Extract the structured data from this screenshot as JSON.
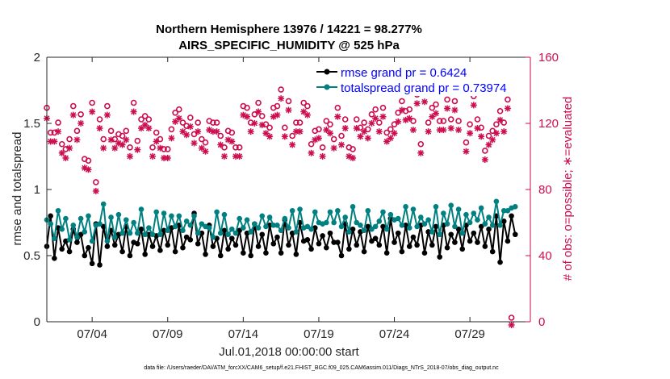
{
  "title_line1": "Northern Hemisphere 13976 / 14221 = 98.277%",
  "title_line2": "AIRS_SPECIFIC_HUMIDITY @ 525 hPa",
  "xlabel": "Jul.01,2018 00:00:00 start",
  "ylabel_left": "rmse and totalspread",
  "ylabel_right": "# of obs: o=possible; ∗=evaluated",
  "footer": "data file: /Users/raeder/DAI/ATM_forcXX/CAM6_setup/f.e21.FHIST_BGC.f09_025.CAM6assim.011/Diags_NTrS_2018-07/obs_diag_output.nc",
  "colors": {
    "rmse": "#000000",
    "spread": "#008080",
    "obs": "#cc0d4f",
    "axis": "#262626",
    "legend_text": "#0000ff"
  },
  "chart_data": {
    "type": "line",
    "x": [
      0.0,
      0.25,
      0.5,
      0.75,
      1.0,
      1.25,
      1.5,
      1.75,
      2.0,
      2.25,
      2.5,
      2.75,
      3.0,
      3.25,
      3.5,
      3.75,
      4.0,
      4.25,
      4.5,
      4.75,
      5.0,
      5.25,
      5.5,
      5.75,
      6.0,
      6.25,
      6.5,
      6.75,
      7.0,
      7.25,
      7.5,
      7.75,
      8.0,
      8.25,
      8.5,
      8.75,
      9.0,
      9.25,
      9.5,
      9.75,
      10.0,
      10.25,
      10.5,
      10.75,
      11.0,
      11.25,
      11.5,
      11.75,
      12.0,
      12.25,
      12.5,
      12.75,
      13.0,
      13.25,
      13.5,
      13.75,
      14.0,
      14.25,
      14.5,
      14.75,
      15.0,
      15.25,
      15.5,
      15.75,
      16.0,
      16.25,
      16.5,
      16.75,
      17.0,
      17.25,
      17.5,
      17.75,
      18.0,
      18.25,
      18.5,
      18.75,
      19.0,
      19.25,
      19.5,
      19.75,
      20.0,
      20.25,
      20.5,
      20.75,
      21.0,
      21.25,
      21.5,
      21.75,
      22.0,
      22.25,
      22.5,
      22.75,
      23.0,
      23.25,
      23.5,
      23.75,
      24.0,
      24.25,
      24.5,
      24.75,
      25.0,
      25.25,
      25.5,
      25.75,
      26.0,
      26.25,
      26.5,
      26.75,
      27.0,
      27.25,
      27.5,
      27.75,
      28.0,
      28.25,
      28.5,
      28.75,
      29.0,
      29.25,
      29.5,
      29.75,
      30.0,
      30.25,
      30.5,
      30.75,
      31.0
    ],
    "xlim": [
      0,
      32
    ],
    "xticks": [
      {
        "value": 3,
        "label": "07/04"
      },
      {
        "value": 8,
        "label": "07/09"
      },
      {
        "value": 13,
        "label": "07/14"
      },
      {
        "value": 18,
        "label": "07/19"
      },
      {
        "value": 23,
        "label": "07/24"
      },
      {
        "value": 28,
        "label": "07/29"
      }
    ],
    "ylim_left": [
      0,
      2
    ],
    "yticks_left": [
      0,
      0.5,
      1,
      1.5,
      2
    ],
    "ylim_right": [
      0,
      160
    ],
    "yticks_right": [
      0,
      40,
      80,
      120,
      160
    ],
    "series": [
      {
        "name": "rmse",
        "legend": "rmse grand pr = 0.6424",
        "axis": "left",
        "marker": "dot",
        "color": "#000000",
        "values": [
          0.57,
          0.8,
          0.48,
          0.71,
          0.55,
          0.61,
          0.53,
          0.7,
          0.6,
          0.66,
          0.5,
          0.56,
          0.44,
          0.74,
          0.43,
          0.72,
          0.57,
          0.69,
          0.58,
          0.66,
          0.53,
          0.72,
          0.5,
          0.6,
          0.59,
          0.7,
          0.51,
          0.66,
          0.57,
          0.65,
          0.54,
          0.69,
          0.58,
          0.71,
          0.53,
          0.73,
          0.56,
          0.64,
          0.62,
          0.82,
          0.59,
          0.67,
          0.51,
          0.73,
          0.57,
          0.63,
          0.5,
          0.69,
          0.55,
          0.63,
          0.58,
          0.69,
          0.52,
          0.67,
          0.5,
          0.74,
          0.57,
          0.66,
          0.52,
          0.73,
          0.59,
          0.64,
          0.52,
          0.77,
          0.58,
          0.67,
          0.51,
          0.75,
          0.61,
          0.62,
          0.55,
          0.71,
          0.59,
          0.65,
          0.56,
          0.67,
          0.6,
          0.6,
          0.5,
          0.74,
          0.55,
          0.7,
          0.58,
          0.68,
          0.53,
          0.72,
          0.61,
          0.63,
          0.58,
          0.72,
          0.52,
          0.78,
          0.6,
          0.67,
          0.53,
          0.73,
          0.57,
          0.64,
          0.58,
          0.73,
          0.52,
          0.68,
          0.58,
          0.72,
          0.49,
          0.73,
          0.56,
          0.66,
          0.6,
          0.7,
          0.55,
          0.73,
          0.61,
          0.67,
          0.6,
          0.72,
          0.57,
          0.7,
          0.53,
          0.8,
          0.45,
          0.76,
          0.61,
          0.8,
          0.66
        ]
      },
      {
        "name": "totalspread",
        "legend": "totalspread grand pr = 0.73974",
        "axis": "left",
        "marker": "dot",
        "color": "#008080",
        "values": [
          0.77,
          0.74,
          0.63,
          0.84,
          0.7,
          0.78,
          0.62,
          0.73,
          0.64,
          0.78,
          0.68,
          0.8,
          0.61,
          0.73,
          0.74,
          0.89,
          0.61,
          0.79,
          0.64,
          0.81,
          0.67,
          0.77,
          0.67,
          0.75,
          0.67,
          0.85,
          0.66,
          0.71,
          0.66,
          0.83,
          0.66,
          0.82,
          0.69,
          0.8,
          0.72,
          0.8,
          0.69,
          0.76,
          0.73,
          0.8,
          0.67,
          0.74,
          0.72,
          0.71,
          0.64,
          0.83,
          0.67,
          0.81,
          0.66,
          0.7,
          0.67,
          0.78,
          0.71,
          0.77,
          0.68,
          0.74,
          0.71,
          0.8,
          0.72,
          0.79,
          0.73,
          0.73,
          0.69,
          0.78,
          0.71,
          0.84,
          0.68,
          0.85,
          0.71,
          0.72,
          0.7,
          0.83,
          0.75,
          0.74,
          0.75,
          0.83,
          0.75,
          0.84,
          0.72,
          0.79,
          0.68,
          0.87,
          0.75,
          0.73,
          0.69,
          0.84,
          0.7,
          0.72,
          0.76,
          0.83,
          0.7,
          0.81,
          0.77,
          0.78,
          0.73,
          0.87,
          0.71,
          0.85,
          0.72,
          0.79,
          0.74,
          0.77,
          0.68,
          0.87,
          0.66,
          0.82,
          0.74,
          0.88,
          0.72,
          0.85,
          0.67,
          0.81,
          0.75,
          0.82,
          0.77,
          0.86,
          0.74,
          0.79,
          0.73,
          0.91,
          0.73,
          0.84,
          0.84,
          0.86,
          0.87
        ]
      },
      {
        "name": "obs_possible",
        "legend": "",
        "axis": "right",
        "marker": "circle",
        "color": "#cc0d4f",
        "values": [
          127,
          112,
          112,
          118,
          105,
          102,
          108,
          128,
          113,
          123,
          96,
          95,
          130,
          82,
          120,
          108,
          128,
          113,
          108,
          111,
          110,
          113,
          103,
          130,
          107,
          120,
          122,
          120,
          103,
          112,
          108,
          102,
          102,
          114,
          124,
          126,
          118,
          116,
          121,
          111,
          118,
          108,
          106,
          119,
          118,
          118,
          110,
          103,
          113,
          112,
          103,
          103,
          128,
          127,
          118,
          123,
          130,
          122,
          117,
          115,
          127,
          128,
          138,
          115,
          131,
          110,
          118,
          118,
          130,
          128,
          105,
          113,
          114,
          103,
          119,
          117,
          108,
          127,
          110,
          120,
          103,
          102,
          120,
          115,
          118,
          114,
          123,
          126,
          118,
          127,
          112,
          114,
          117,
          124,
          131,
          125,
          126,
          119,
          135,
          105,
          136,
          118,
          127,
          129,
          119,
          119,
          132,
          120,
          131,
          119,
          142,
          106,
          117,
          134,
          120,
          115,
          101,
          110,
          113,
          117,
          125,
          118,
          132,
          0,
          146
        ]
      },
      {
        "name": "obs_evaluated",
        "legend": "",
        "axis": "right",
        "marker": "star",
        "color": "#cc0d4f",
        "values": [
          125,
          111,
          111,
          117,
          104,
          101,
          107,
          127,
          112,
          122,
          95,
          94,
          129,
          81,
          119,
          107,
          127,
          112,
          107,
          110,
          109,
          112,
          102,
          129,
          106,
          119,
          121,
          119,
          102,
          111,
          107,
          101,
          101,
          113,
          123,
          125,
          117,
          115,
          120,
          110,
          117,
          107,
          105,
          118,
          117,
          117,
          109,
          102,
          112,
          111,
          102,
          102,
          127,
          126,
          117,
          122,
          129,
          121,
          116,
          114,
          126,
          127,
          137,
          114,
          130,
          109,
          117,
          117,
          129,
          127,
          104,
          112,
          113,
          102,
          118,
          116,
          107,
          126,
          109,
          119,
          102,
          101,
          119,
          114,
          117,
          113,
          122,
          125,
          117,
          126,
          111,
          113,
          116,
          123,
          130,
          124,
          125,
          118,
          134,
          104,
          135,
          117,
          126,
          128,
          118,
          118,
          131,
          119,
          130,
          118,
          141,
          105,
          116,
          133,
          119,
          114,
          100,
          109,
          112,
          116,
          124,
          117,
          131,
          0,
          145
        ]
      }
    ]
  }
}
